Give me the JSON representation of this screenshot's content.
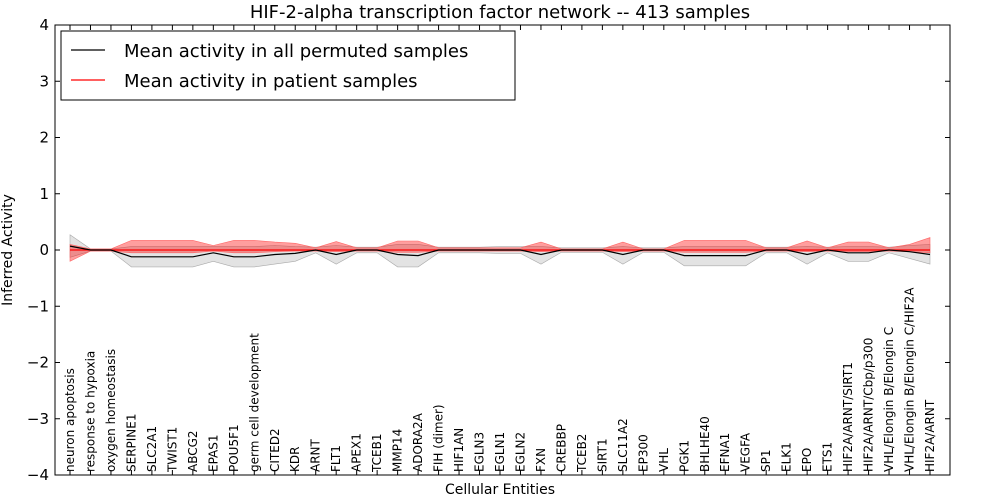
{
  "chart_data": {
    "type": "line",
    "title": "HIF-2-alpha transcription factor network -- 413 samples",
    "xlabel": "Cellular Entities",
    "ylabel": "Inferred Activity",
    "ylim": [
      -4,
      4
    ],
    "yticks": [
      4,
      3,
      2,
      1,
      0,
      -1,
      -2,
      -3,
      -4
    ],
    "ytick_labels": [
      "4",
      "3",
      "2",
      "1",
      "0",
      "−1",
      "−2",
      "−3",
      "−4"
    ],
    "legend_position": "top-left",
    "categories": [
      "neuron apoptosis",
      "response to hypoxia",
      "oxygen homeostasis",
      "SERPINE1",
      "SLC2A1",
      "TWIST1",
      "ABCG2",
      "EPAS1",
      "POU5F1",
      "germ cell development",
      "CITED2",
      "KDR",
      "ARNT",
      "FLT1",
      "APEX1",
      "TCEB1",
      "MMP14",
      "ADORA2A",
      "FIH (dimer)",
      "HIF1AN",
      "EGLN3",
      "EGLN1",
      "EGLN2",
      "FXN",
      "CREBBP",
      "TCEB2",
      "SIRT1",
      "SLC11A2",
      "EP300",
      "VHL",
      "PGK1",
      "BHLHE40",
      "EFNA1",
      "VEGFA",
      "SP1",
      "ELK1",
      "EPO",
      "ETS1",
      "HIF2A/ARNT/SIRT1",
      "HIF2A/ARNT/Cbp/p300",
      "VHL/Elongin B/Elongin C",
      "VHL/Elongin B/Elongin C/HIF2A",
      "HIF2A/ARNT"
    ],
    "series": [
      {
        "name": "Mean activity in all permuted samples",
        "color": "#000000",
        "values": [
          0.07,
          0.0,
          0.0,
          -0.12,
          -0.12,
          -0.12,
          -0.12,
          -0.05,
          -0.12,
          -0.12,
          -0.08,
          -0.06,
          0.0,
          -0.08,
          0.0,
          0.0,
          -0.08,
          -0.1,
          0.0,
          0.0,
          0.0,
          0.0,
          0.0,
          -0.08,
          0.0,
          0.0,
          0.0,
          -0.08,
          0.0,
          0.0,
          -0.1,
          -0.1,
          -0.1,
          -0.1,
          0.0,
          0.0,
          -0.08,
          0.0,
          -0.05,
          -0.05,
          0.0,
          -0.03,
          -0.08
        ],
        "lower": [
          -0.13,
          -0.02,
          -0.02,
          -0.3,
          -0.3,
          -0.3,
          -0.3,
          -0.2,
          -0.3,
          -0.3,
          -0.25,
          -0.2,
          -0.05,
          -0.25,
          -0.05,
          -0.05,
          -0.3,
          -0.3,
          -0.05,
          -0.05,
          -0.05,
          -0.06,
          -0.06,
          -0.25,
          -0.04,
          -0.04,
          -0.04,
          -0.25,
          -0.04,
          -0.04,
          -0.28,
          -0.28,
          -0.28,
          -0.28,
          -0.05,
          -0.05,
          -0.25,
          -0.05,
          -0.2,
          -0.2,
          -0.05,
          -0.15,
          -0.25
        ],
        "upper": [
          0.27,
          0.02,
          0.02,
          0.06,
          0.06,
          0.06,
          0.06,
          0.06,
          0.06,
          0.06,
          0.08,
          0.06,
          0.05,
          0.08,
          0.05,
          0.05,
          0.1,
          0.1,
          0.05,
          0.05,
          0.05,
          0.06,
          0.06,
          0.06,
          0.04,
          0.04,
          0.04,
          0.06,
          0.04,
          0.04,
          0.06,
          0.06,
          0.06,
          0.06,
          0.05,
          0.05,
          0.06,
          0.05,
          0.06,
          0.06,
          0.05,
          0.08,
          0.1
        ]
      },
      {
        "name": "Mean activity in patient samples",
        "color": "#ff0000",
        "values": [
          0.0,
          0.0,
          0.0,
          0.0,
          0.0,
          0.0,
          0.0,
          0.0,
          0.0,
          0.0,
          0.0,
          0.0,
          0.0,
          0.0,
          0.0,
          0.0,
          0.0,
          0.0,
          0.0,
          0.0,
          0.0,
          0.0,
          0.0,
          0.0,
          0.0,
          0.0,
          0.0,
          0.0,
          0.0,
          0.0,
          0.0,
          0.0,
          0.0,
          0.0,
          0.0,
          0.0,
          0.0,
          0.0,
          0.0,
          0.0,
          0.0,
          0.0,
          0.0
        ],
        "lower": [
          -0.2,
          -0.02,
          -0.02,
          -0.05,
          -0.05,
          -0.05,
          -0.05,
          -0.02,
          -0.05,
          -0.05,
          -0.03,
          -0.02,
          -0.02,
          -0.03,
          -0.02,
          -0.02,
          -0.04,
          -0.04,
          -0.02,
          -0.02,
          -0.02,
          -0.02,
          -0.02,
          -0.03,
          -0.02,
          -0.02,
          -0.02,
          -0.03,
          -0.02,
          -0.02,
          -0.04,
          -0.04,
          -0.04,
          -0.04,
          -0.02,
          -0.02,
          -0.03,
          -0.02,
          -0.03,
          -0.03,
          -0.02,
          -0.03,
          -0.05
        ],
        "upper": [
          0.1,
          0.02,
          0.02,
          0.17,
          0.17,
          0.17,
          0.17,
          0.08,
          0.17,
          0.17,
          0.14,
          0.12,
          0.04,
          0.15,
          0.04,
          0.04,
          0.16,
          0.16,
          0.04,
          0.04,
          0.04,
          0.04,
          0.04,
          0.14,
          0.02,
          0.02,
          0.02,
          0.14,
          0.02,
          0.02,
          0.17,
          0.17,
          0.17,
          0.17,
          0.04,
          0.04,
          0.16,
          0.04,
          0.14,
          0.14,
          0.04,
          0.1,
          0.22
        ]
      }
    ]
  }
}
